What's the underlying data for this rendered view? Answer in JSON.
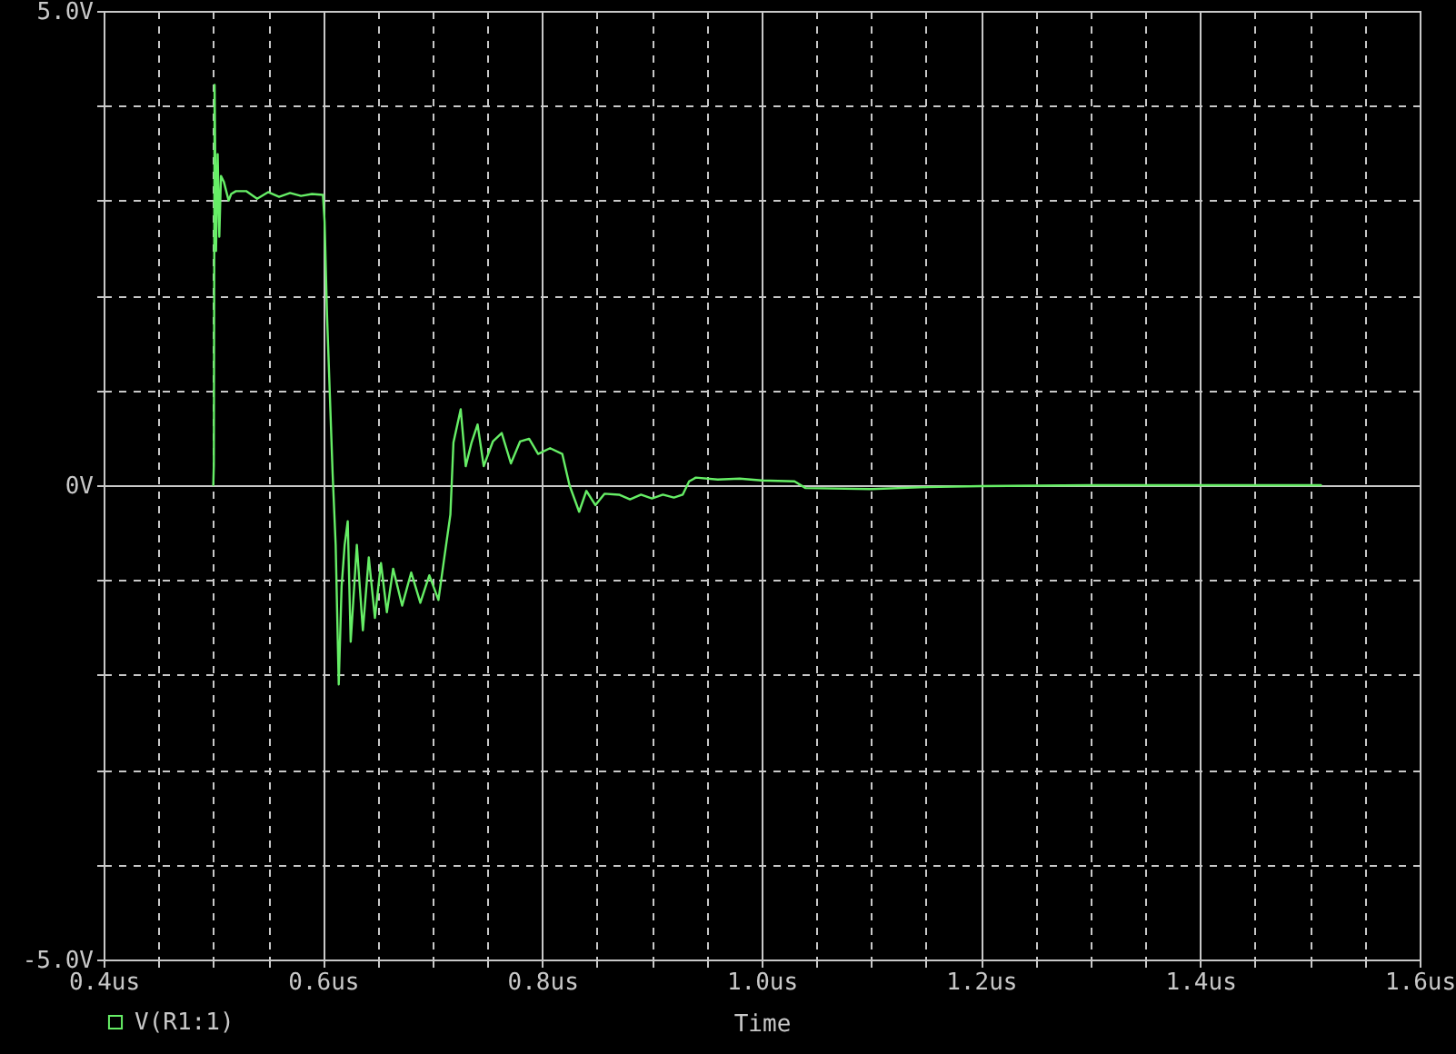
{
  "chart_data": {
    "type": "line",
    "xlabel": "Time",
    "xlim": [
      0.4,
      1.6
    ],
    "ylim": [
      -5,
      5
    ],
    "xticks": [
      {
        "value": 0.4,
        "label": "0.4us"
      },
      {
        "value": 0.45,
        "label": null
      },
      {
        "value": 0.5,
        "label": null
      },
      {
        "value": 0.55,
        "label": null
      },
      {
        "value": 0.6,
        "label": "0.6us"
      },
      {
        "value": 0.65,
        "label": null
      },
      {
        "value": 0.7,
        "label": null
      },
      {
        "value": 0.75,
        "label": null
      },
      {
        "value": 0.8,
        "label": "0.8us"
      },
      {
        "value": 0.85,
        "label": null
      },
      {
        "value": 0.9,
        "label": null
      },
      {
        "value": 0.95,
        "label": null
      },
      {
        "value": 1.0,
        "label": "1.0us"
      },
      {
        "value": 1.05,
        "label": null
      },
      {
        "value": 1.1,
        "label": null
      },
      {
        "value": 1.15,
        "label": null
      },
      {
        "value": 1.2,
        "label": "1.2us"
      },
      {
        "value": 1.25,
        "label": null
      },
      {
        "value": 1.3,
        "label": null
      },
      {
        "value": 1.35,
        "label": null
      },
      {
        "value": 1.4,
        "label": "1.4us"
      },
      {
        "value": 1.45,
        "label": null
      },
      {
        "value": 1.5,
        "label": null
      },
      {
        "value": 1.55,
        "label": null
      },
      {
        "value": 1.6,
        "label": "1.6us"
      }
    ],
    "yticks": [
      {
        "value": -5,
        "label": "-5.0V"
      },
      {
        "value": -4,
        "label": null
      },
      {
        "value": -3,
        "label": null
      },
      {
        "value": -2,
        "label": null
      },
      {
        "value": -1,
        "label": null
      },
      {
        "value": 0,
        "label": "0V"
      },
      {
        "value": 1,
        "label": null
      },
      {
        "value": 2,
        "label": null
      },
      {
        "value": 3,
        "label": null
      },
      {
        "value": 4,
        "label": null
      },
      {
        "value": 5,
        "label": "5.0V"
      }
    ],
    "grid": true,
    "legend": "bottom left",
    "line_style": "solid",
    "series": [
      {
        "name": "V(R1:1)",
        "color": "#66ee66",
        "x": [
          0.5,
          0.5005,
          0.5012,
          0.5025,
          0.504,
          0.5055,
          0.507,
          0.5096,
          0.514,
          0.5163,
          0.5207,
          0.53,
          0.54,
          0.55,
          0.56,
          0.57,
          0.58,
          0.59,
          0.6,
          0.6015,
          0.6037,
          0.6088,
          0.6116,
          0.6144,
          0.617,
          0.6198,
          0.6226,
          0.6253,
          0.6309,
          0.6364,
          0.6418,
          0.6474,
          0.6529,
          0.6583,
          0.664,
          0.6722,
          0.6805,
          0.6888,
          0.697,
          0.7053,
          0.7107,
          0.7162,
          0.719,
          0.7256,
          0.7302,
          0.7355,
          0.741,
          0.7466,
          0.7549,
          0.763,
          0.7714,
          0.7797,
          0.788,
          0.7962,
          0.8071,
          0.8182,
          0.8248,
          0.8336,
          0.8402,
          0.8484,
          0.8567,
          0.87,
          0.88,
          0.89,
          0.9,
          0.91,
          0.92,
          0.928,
          0.9339,
          0.94,
          0.96,
          0.98,
          1.0,
          1.03,
          1.04,
          1.1,
          1.15,
          1.2,
          1.3,
          1.4,
          1.51
        ],
        "values": [
          0,
          0.21,
          4.22,
          2.47,
          3.49,
          2.62,
          3.26,
          3.2,
          3.0,
          3.07,
          3.1,
          3.1,
          3.02,
          3.09,
          3.04,
          3.08,
          3.05,
          3.07,
          3.06,
          2.78,
          1.8,
          0.13,
          -0.63,
          -2.1,
          -1.07,
          -0.63,
          -0.38,
          -1.65,
          -0.63,
          -1.53,
          -0.76,
          -1.4,
          -0.82,
          -1.34,
          -0.88,
          -1.27,
          -0.92,
          -1.24,
          -0.95,
          -1.21,
          -0.76,
          -0.31,
          0.45,
          0.8,
          0.2,
          0.45,
          0.64,
          0.2,
          0.46,
          0.55,
          0.23,
          0.46,
          0.49,
          0.33,
          0.39,
          0.33,
          0.0,
          -0.28,
          -0.06,
          -0.21,
          -0.09,
          -0.1,
          -0.15,
          -0.1,
          -0.14,
          -0.1,
          -0.13,
          -0.1,
          0.04,
          0.08,
          0.06,
          0.07,
          0.05,
          0.04,
          -0.03,
          -0.04,
          -0.02,
          -0.01,
          0,
          0,
          0
        ]
      }
    ]
  }
}
